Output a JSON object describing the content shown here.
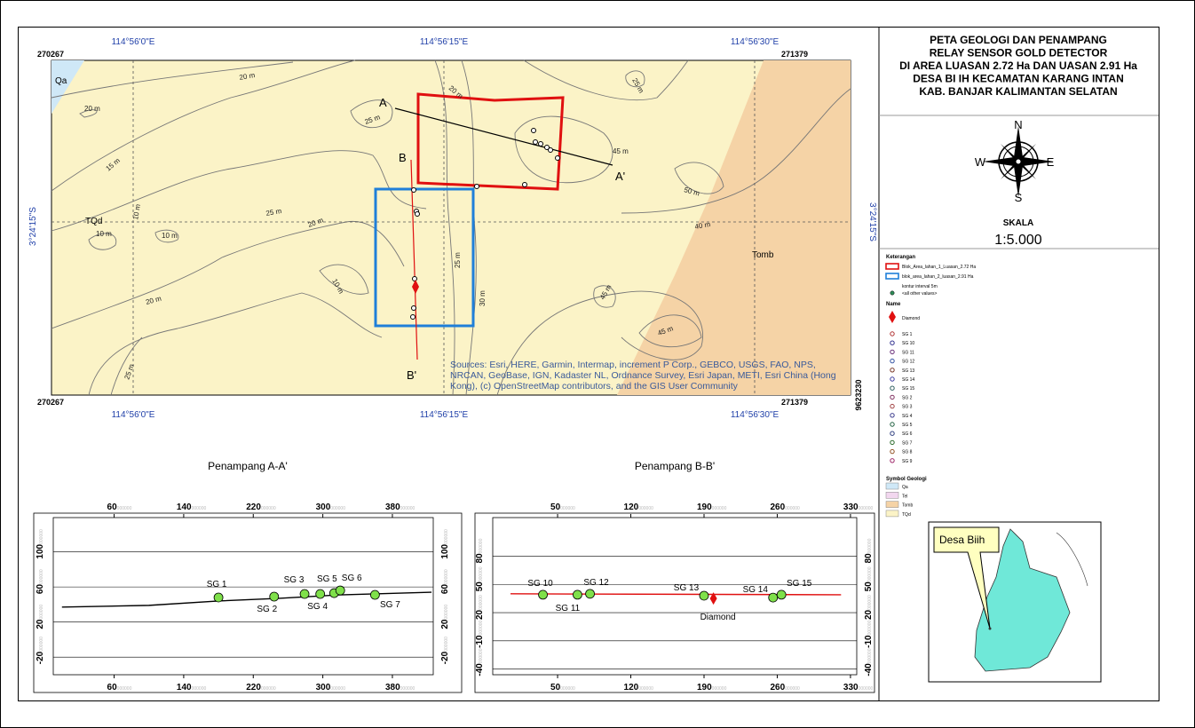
{
  "title": [
    "PETA GEOLOGI DAN PENAMPANG",
    "RELAY SENSOR GOLD DETECTOR",
    "DI AREA LUASAN 2.72 Ha DAN UASAN 2.91 Ha",
    "DESA BI IH KECAMATAN KARANG INTAN",
    "KAB. BANJAR KALIMANTAN SELATAN"
  ],
  "compass": {
    "north": "N",
    "east": "E",
    "south": "S",
    "west": "W"
  },
  "scale": {
    "label": "SKALA",
    "value": "1:5.000"
  },
  "map": {
    "top_coords": [
      "114°56'0\"E",
      "114°56'15\"E",
      "114°56'30\"E"
    ],
    "bottom_coords": [
      "114°56'0\"E",
      "114°56'15\"E",
      "114°56'30\"E"
    ],
    "left_coord": "3°24'15\"S",
    "right_coord": "3°24'15\"S",
    "corners": {
      "top_left": "270267",
      "top_right": "271379",
      "bottom_left": "270267",
      "bottom_right": "271379",
      "northing": "9623230"
    },
    "units": [
      "Qa",
      "TQd",
      "Tomb"
    ],
    "section_labels": [
      "A",
      "A'",
      "B",
      "B'"
    ],
    "contour_labels": [
      "20 m",
      "20 m",
      "25 m",
      "20 m",
      "25 m",
      "15 m",
      "45 m",
      "50 m",
      "25 m",
      "20 m",
      "10 m",
      "10 m",
      "10 m",
      "40 m",
      "25 m",
      "10 m",
      "20 m",
      "30 m",
      "45 m",
      "45 m",
      "25 m"
    ],
    "attribution": [
      "Sources: Esri, HERE, Garmin, Intermap, increment P Corp., GEBCO, USGS, FAO, NPS,",
      "NRCAN, GeoBase, IGN, Kadaster NL, Ordnance Survey, Esri Japan, METI, Esri China (Hong",
      "Kong), (c) OpenStreetMap contributors, and the GIS User Community"
    ]
  },
  "legend": {
    "title": "Keterangan",
    "blocks": [
      "Blok_Area_lahan_1_Luasan_2.72 Ha",
      "blok_area_lahan_2_luasan_2.91 Ha"
    ],
    "contour": [
      "kontur interval 5m",
      "<all other values>"
    ],
    "name_title": "Name",
    "diamond": "Diamond",
    "samples": [
      "SG 1",
      "SG 10",
      "SG 11",
      "SG 12",
      "SG 13",
      "SG 14",
      "SG 15",
      "SG 2",
      "SG 3",
      "SG 4",
      "SG 5",
      "SG 6",
      "SG 7",
      "SG 8",
      "SG 9"
    ],
    "geology_title": "Symbol Geologi",
    "geology": [
      {
        "name": "Qa",
        "color": "#cfe8f7"
      },
      {
        "name": "Tel",
        "color": "#f2d7ef"
      },
      {
        "name": "Tomb",
        "color": "#f5d3a6"
      },
      {
        "name": "TQd",
        "color": "#fbf3c7"
      }
    ]
  },
  "inset": {
    "label": "Desa Biih"
  },
  "sections": [
    {
      "title": "Penampang A-A'",
      "tick_suffix": "000000",
      "xlim": [
        -10,
        427
      ],
      "ylim": [
        -40,
        139
      ],
      "xticks": [
        60,
        140,
        220,
        300,
        380
      ],
      "yticks": [
        -20,
        20,
        60,
        100
      ],
      "profile": {
        "x": [
          0,
          100,
          180,
          250,
          320,
          425
        ],
        "y": [
          37,
          39,
          44,
          47,
          51,
          54
        ],
        "color": "#000000"
      },
      "points": [
        {
          "name": "SG 1",
          "x": 180,
          "y": 48
        },
        {
          "name": "SG 2",
          "x": 244,
          "y": 49
        },
        {
          "name": "SG 3",
          "x": 279,
          "y": 52
        },
        {
          "name": "SG 4",
          "x": 297,
          "y": 52
        },
        {
          "name": "SG 5",
          "x": 313,
          "y": 53
        },
        {
          "name": "SG 6",
          "x": 320,
          "y": 56
        },
        {
          "name": "SG 7",
          "x": 360,
          "y": 51
        }
      ]
    },
    {
      "title": "Penampang B-B'",
      "tick_suffix": "000000",
      "xlim": [
        -12,
        336
      ],
      "ylim": [
        -46,
        121
      ],
      "xticks": [
        50,
        120,
        190,
        260,
        330
      ],
      "yticks": [
        -40,
        -10,
        20,
        50,
        80
      ],
      "profile": {
        "x": [
          5,
          321
        ],
        "y": [
          40,
          39
        ],
        "color": "#e01010"
      },
      "points": [
        {
          "name": "SG 10",
          "x": 36,
          "y": 39
        },
        {
          "name": "SG 11",
          "x": 69,
          "y": 39
        },
        {
          "name": "SG 12",
          "x": 81,
          "y": 40
        },
        {
          "name": "SG 13",
          "x": 190,
          "y": 38
        },
        {
          "name": "Diamond",
          "x": 199,
          "y": 35,
          "marker": "diamond"
        },
        {
          "name": "SG 14",
          "x": 256,
          "y": 36
        },
        {
          "name": "SG 15",
          "x": 264,
          "y": 39
        }
      ]
    }
  ]
}
